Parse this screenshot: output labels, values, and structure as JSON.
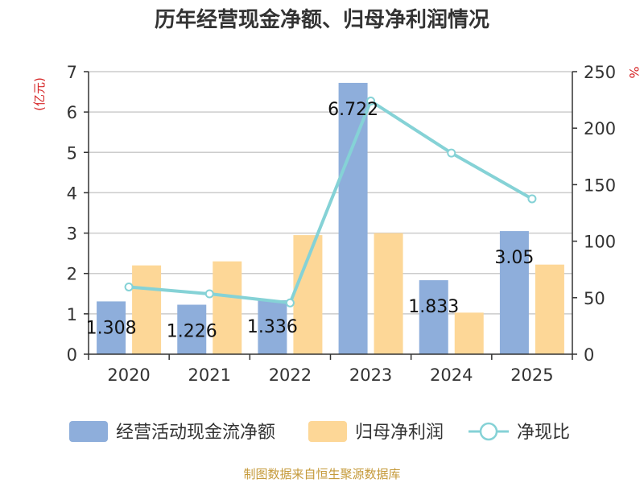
{
  "chart_data": {
    "type": "bar",
    "title": "历年经营现金净额、归母净利润情况",
    "categories": [
      "2020",
      "2021",
      "2022",
      "2023",
      "2024",
      "2025"
    ],
    "left_axis": {
      "unit": "(亿元)",
      "range": [
        0,
        7
      ],
      "ticks": [
        "0",
        "1",
        "2",
        "3",
        "4",
        "5",
        "6",
        "7"
      ]
    },
    "right_axis": {
      "unit": "%",
      "range": [
        0,
        250
      ],
      "ticks": [
        "0",
        "50",
        "100",
        "150",
        "200",
        "250"
      ]
    },
    "series": [
      {
        "name": "经营活动现金流净额",
        "kind": "bar",
        "axis": "left",
        "color": "#8eaedb",
        "values": [
          1.308,
          1.226,
          1.336,
          6.722,
          1.833,
          3.05
        ],
        "labels": [
          "1.308",
          "1.226",
          "1.336",
          "6.722",
          "1.833",
          "3.05"
        ]
      },
      {
        "name": "归母净利润",
        "kind": "bar",
        "axis": "left",
        "color": "#fdd797",
        "values": [
          2.2,
          2.3,
          2.95,
          3.0,
          1.03,
          2.22
        ]
      },
      {
        "name": "净现比",
        "kind": "line",
        "axis": "right",
        "color": "#85d2d6",
        "values": [
          59.5,
          53.4,
          45.4,
          224.0,
          178.0,
          137.5
        ]
      }
    ],
    "grid": true,
    "legend_position": "bottom"
  },
  "source_text": "制图数据来自恒生聚源数据库"
}
